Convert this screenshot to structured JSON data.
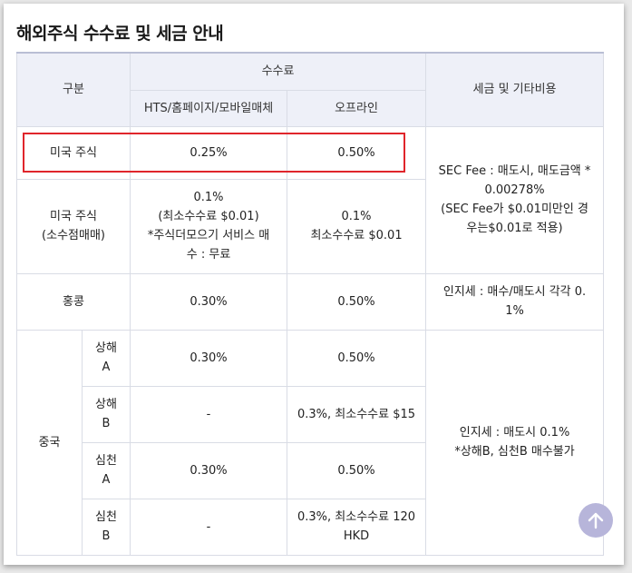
{
  "title": "해외주식 수수료 및 세금 안내",
  "header": {
    "category": "구분",
    "fee": "수수료",
    "fee_online": "HTS/홈페이지/모바일매체",
    "fee_offline": "오프라인",
    "tax": "세금 및 기타비용"
  },
  "rows": {
    "us": {
      "label": "미국 주식",
      "online": "0.25%",
      "offline": "0.50%"
    },
    "us_fraction": {
      "label1": "미국 주식",
      "label2": "(소수점매매)",
      "online1": "0.1%",
      "online2": "(최소수수료 $0.01)",
      "online3": "*주식더모으기 서비스 매",
      "online4": "수 : 무료",
      "offline1": "0.1%",
      "offline2": "최소수수료 $0.01"
    },
    "us_tax1": "SEC Fee : 매도시, 매도금액 *",
    "us_tax2": "0.00278%",
    "us_tax3": "(SEC Fee가 $0.01미만인 경",
    "us_tax4": "우는$0.01로 적용)",
    "hk": {
      "label": "홍콩",
      "online": "0.30%",
      "offline": "0.50%",
      "tax1": "인지세 : 매수/매도시 각각 0.",
      "tax2": "1%"
    },
    "china": {
      "label": "중국",
      "sh_a": {
        "l1": "상해",
        "l2": "A",
        "online": "0.30%",
        "offline": "0.50%"
      },
      "sh_b": {
        "l1": "상해",
        "l2": "B",
        "online": "-",
        "offline": "0.3%, 최소수수료 $15"
      },
      "sz_a": {
        "l1": "심천",
        "l2": "A",
        "online": "0.30%",
        "offline": "0.50%"
      },
      "sz_b": {
        "l1": "심천",
        "l2": "B",
        "online": "-",
        "offline1": "0.3%, 최소수수료 120",
        "offline2": "HKD"
      },
      "tax1": "인지세 : 매도시 0.1%",
      "tax2": "*상해B, 심천B 매수불가"
    }
  },
  "icons": {
    "scroll_top": "arrow-up-icon"
  },
  "colors": {
    "highlight": "#e0252b",
    "header_bg": "#eef0f8",
    "top_button": "#b7b5da"
  }
}
